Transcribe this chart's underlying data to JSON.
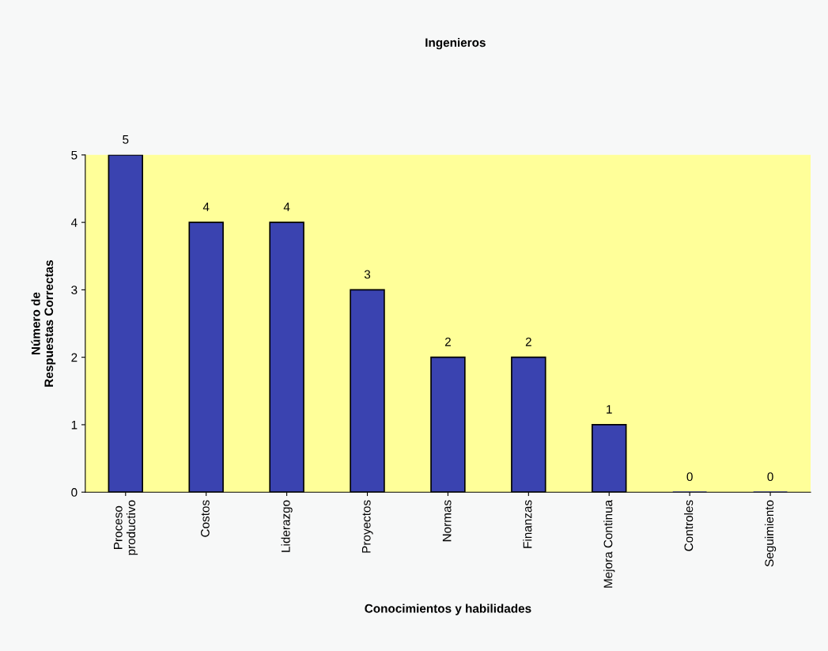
{
  "chart_data": {
    "type": "bar",
    "title": "Ingenieros",
    "xlabel": "Conocimientos y habilidades",
    "ylabel": "Número de\nRespuestas Correctas",
    "categories": [
      "Proceso\nproductivo",
      "Costos",
      "Liderazgo",
      "Proyectos",
      "Normas",
      "Finanzas",
      "Mejora Continua",
      "Controles",
      "Seguimiento"
    ],
    "values": [
      5,
      4,
      4,
      3,
      2,
      2,
      1,
      0,
      0
    ],
    "color": "#3a43b0",
    "ylim": [
      0,
      5
    ],
    "yticks": [
      0,
      1,
      2,
      3,
      4,
      5
    ],
    "grid": false,
    "data_labels": true
  }
}
